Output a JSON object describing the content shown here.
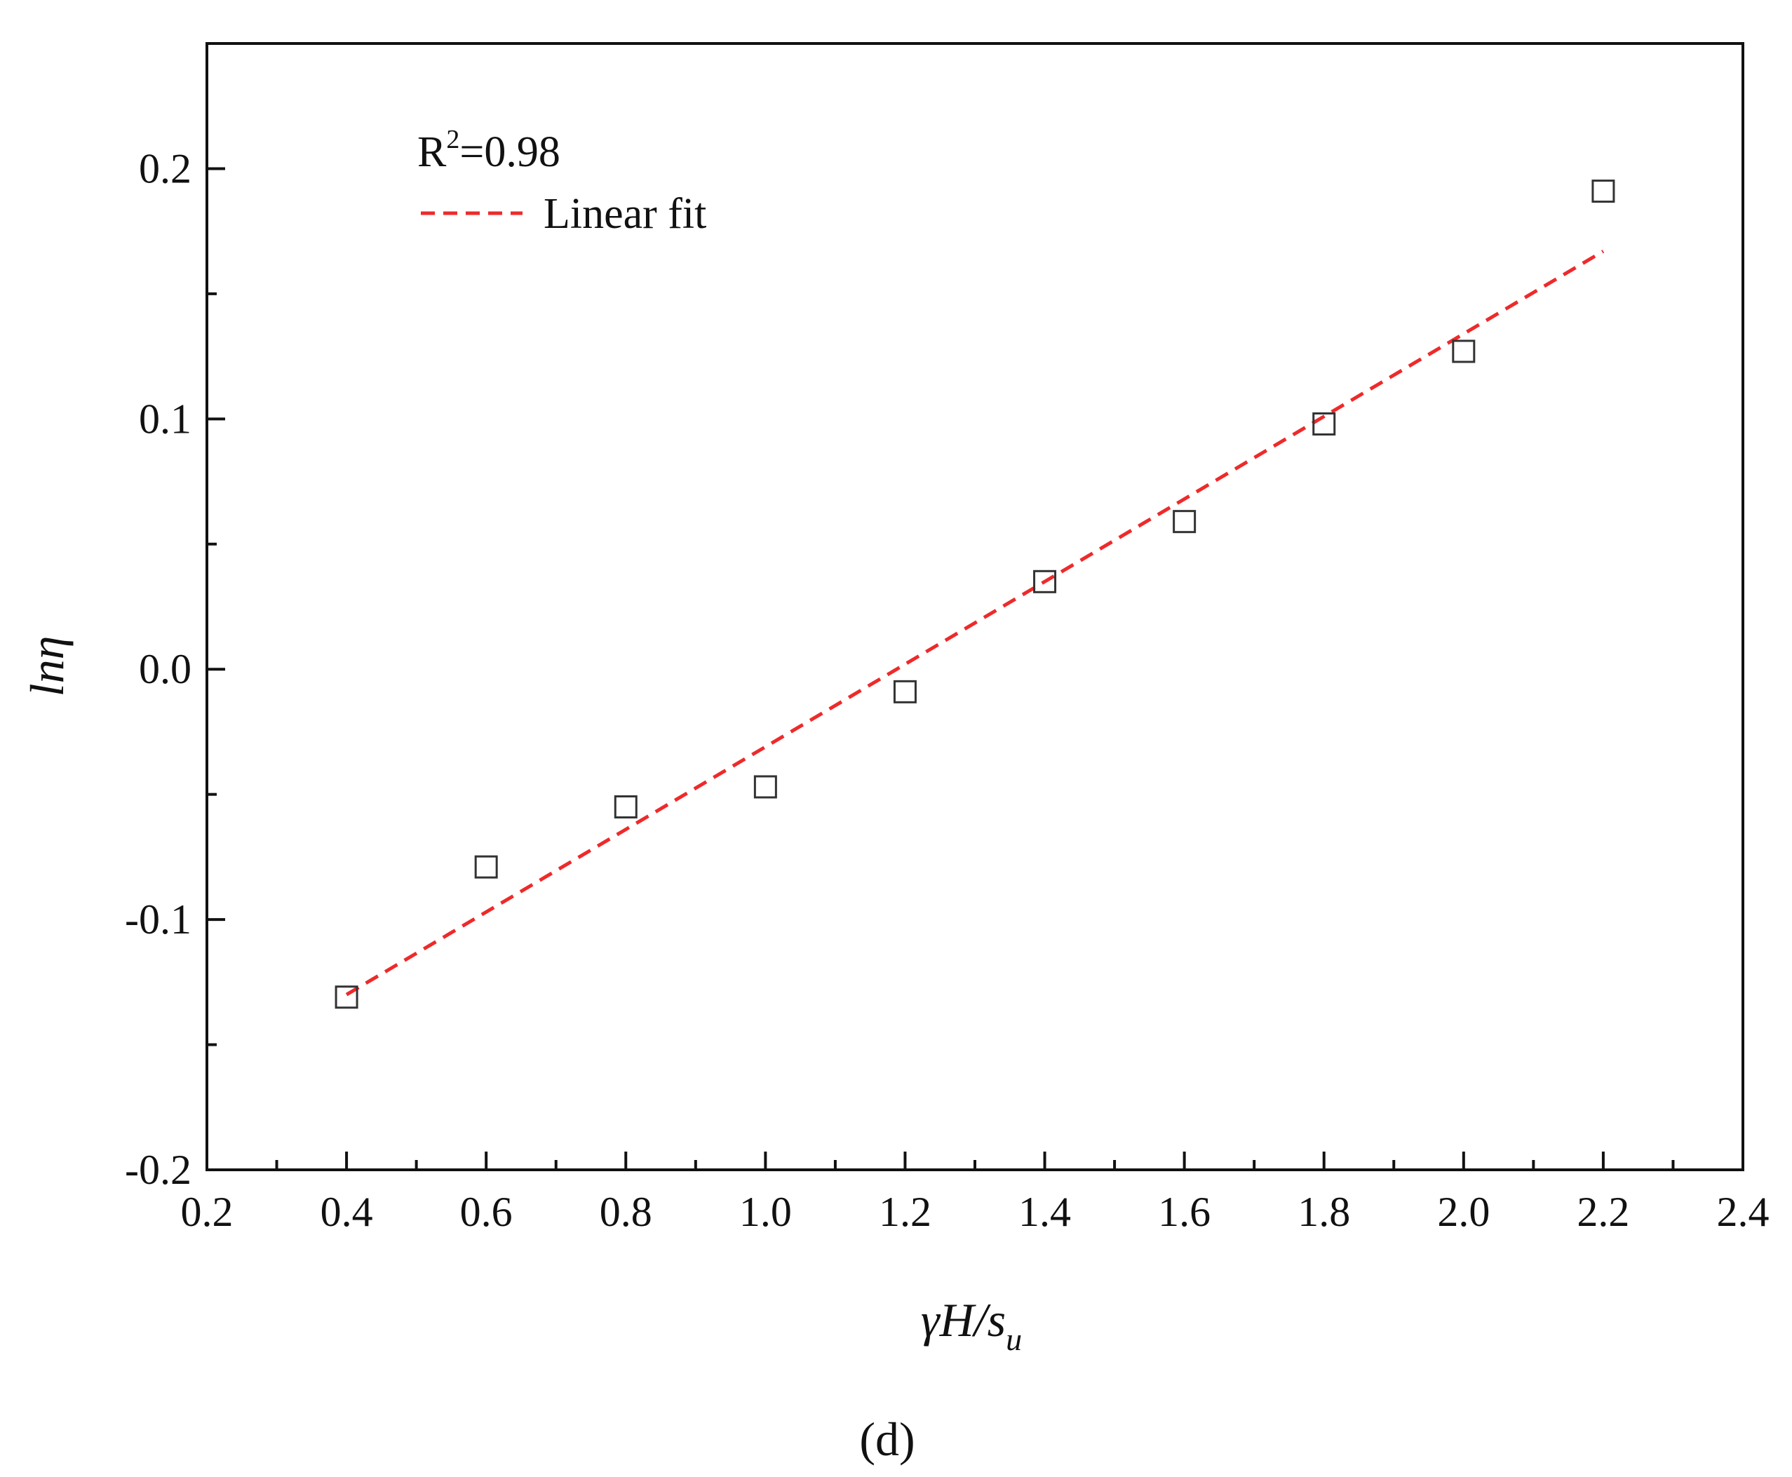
{
  "chart_data": {
    "type": "scatter",
    "xlabel": {
      "base": "γH/s",
      "sub": "u"
    },
    "ylabel": "lnη",
    "xlim": [
      0.2,
      2.4
    ],
    "ylim": [
      -0.2,
      0.25
    ],
    "x_ticks": [
      0.2,
      0.4,
      0.6,
      0.8,
      1.0,
      1.2,
      1.4,
      1.6,
      1.8,
      2.0,
      2.2,
      2.4
    ],
    "x_tick_labels": [
      "0.2",
      "0.4",
      "0.6",
      "0.8",
      "1.0",
      "1.2",
      "1.4",
      "1.6",
      "1.8",
      "2.0",
      "2.2",
      "2.4"
    ],
    "y_ticks": [
      -0.2,
      -0.1,
      0.0,
      0.1,
      0.2
    ],
    "y_tick_labels": [
      "-0.2",
      "-0.1",
      "0.0",
      "0.1",
      "0.2"
    ],
    "grid": false,
    "legend": {
      "placement": "top-left",
      "r2_text": {
        "base": "R",
        "sup": "2",
        "rest": "=0.98"
      },
      "fit_label": "Linear fit"
    },
    "series": [
      {
        "x": [
          0.4,
          0.6,
          0.8,
          1.0,
          1.2,
          1.4,
          1.6,
          1.8,
          2.0,
          2.2
        ],
        "y": [
          -0.131,
          -0.079,
          -0.055,
          -0.047,
          -0.009,
          0.035,
          0.059,
          0.098,
          0.127,
          0.191
        ],
        "marker": "open-square",
        "color": "#333333"
      }
    ],
    "fit_line": {
      "x": [
        0.4,
        2.2
      ],
      "y": [
        -0.13,
        0.167
      ],
      "color": "#ee2a2a",
      "style": "dashed"
    },
    "panel_label": "(d)"
  }
}
